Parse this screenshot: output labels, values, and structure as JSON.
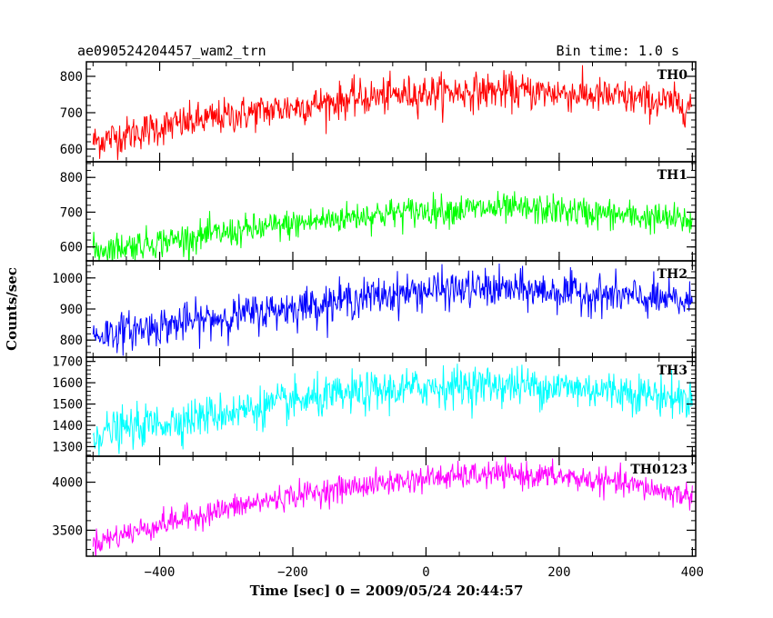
{
  "header": {
    "left_title": "ae090524204457_wam2_trn",
    "right_title": "Bin time: 1.0 s"
  },
  "chart_data": {
    "type": "line",
    "title": "ae090524204457_wam2_trn",
    "subtitle": "Bin time: 1.0 s",
    "xlabel": "Time [sec] 0 = 2009/05/24 20:44:57",
    "ylabel": "Counts/sec",
    "xlim": [
      -510,
      405
    ],
    "x_ticks": [
      -400,
      -200,
      0,
      200,
      400
    ],
    "x_tick_labels": [
      "−400",
      "−200",
      "0",
      "200",
      "400"
    ],
    "grid": false,
    "panels": [
      {
        "name": "TH0",
        "color": "#ff0000",
        "ylim": [
          565,
          840
        ],
        "yticks": [
          600,
          700,
          800
        ],
        "ytick_labels": [
          "600",
          "700",
          "800"
        ],
        "x_range": [
          -500,
          400
        ],
        "trend": [
          [
            -500,
            620
          ],
          [
            -400,
            660
          ],
          [
            -300,
            690
          ],
          [
            -200,
            715
          ],
          [
            -100,
            740
          ],
          [
            0,
            755
          ],
          [
            100,
            760
          ],
          [
            200,
            755
          ],
          [
            300,
            740
          ],
          [
            400,
            720
          ]
        ],
        "noise": 45
      },
      {
        "name": "TH1",
        "color": "#00ff00",
        "ylim": [
          560,
          845
        ],
        "yticks": [
          600,
          700,
          800
        ],
        "ytick_labels": [
          "600",
          "700",
          "800"
        ],
        "x_range": [
          -500,
          400
        ],
        "trend": [
          [
            -500,
            590
          ],
          [
            -400,
            615
          ],
          [
            -300,
            640
          ],
          [
            -200,
            665
          ],
          [
            -100,
            690
          ],
          [
            0,
            705
          ],
          [
            100,
            710
          ],
          [
            200,
            705
          ],
          [
            300,
            690
          ],
          [
            400,
            675
          ]
        ],
        "noise": 40
      },
      {
        "name": "TH2",
        "color": "#0000ff",
        "ylim": [
          745,
          1055
        ],
        "yticks": [
          800,
          900,
          1000
        ],
        "ytick_labels": [
          "800",
          "900",
          "1000"
        ],
        "x_range": [
          -500,
          400
        ],
        "trend": [
          [
            -500,
            815
          ],
          [
            -400,
            845
          ],
          [
            -300,
            875
          ],
          [
            -200,
            905
          ],
          [
            -100,
            935
          ],
          [
            0,
            960
          ],
          [
            100,
            965
          ],
          [
            200,
            955
          ],
          [
            300,
            940
          ],
          [
            400,
            920
          ]
        ],
        "noise": 55
      },
      {
        "name": "TH3",
        "color": "#00ffff",
        "ylim": [
          1255,
          1720
        ],
        "yticks": [
          1300,
          1400,
          1500,
          1600,
          1700
        ],
        "ytick_labels": [
          "1300",
          "1400",
          "1500",
          "1600",
          "1700"
        ],
        "x_range": [
          -500,
          400
        ],
        "trend": [
          [
            -500,
            1360
          ],
          [
            -400,
            1410
          ],
          [
            -300,
            1460
          ],
          [
            -200,
            1510
          ],
          [
            -100,
            1550
          ],
          [
            0,
            1580
          ],
          [
            100,
            1590
          ],
          [
            200,
            1580
          ],
          [
            300,
            1560
          ],
          [
            400,
            1520
          ]
        ],
        "noise": 85
      },
      {
        "name": "TH0123",
        "color": "#ff00ff",
        "ylim": [
          3230,
          4270
        ],
        "yticks": [
          3500,
          4000
        ],
        "ytick_labels": [
          "3500",
          "4000"
        ],
        "x_range": [
          -500,
          400
        ],
        "trend": [
          [
            -500,
            3370
          ],
          [
            -400,
            3560
          ],
          [
            -300,
            3720
          ],
          [
            -200,
            3860
          ],
          [
            -100,
            3960
          ],
          [
            0,
            4040
          ],
          [
            100,
            4080
          ],
          [
            200,
            4060
          ],
          [
            300,
            3980
          ],
          [
            400,
            3850
          ]
        ],
        "noise": 120
      }
    ]
  }
}
